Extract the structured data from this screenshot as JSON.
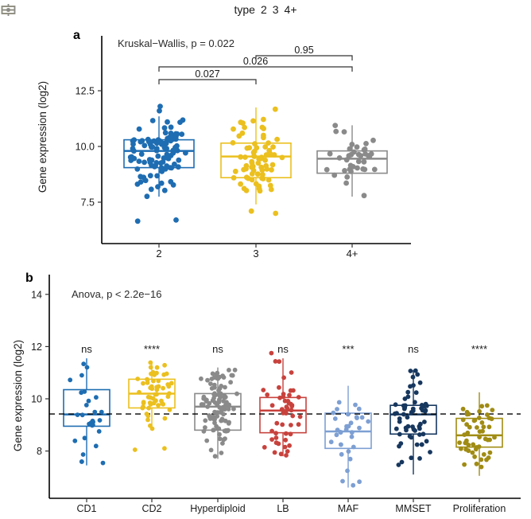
{
  "figure": {
    "background": "#ffffff",
    "text_color": "#1a1a1a"
  },
  "legend": {
    "title": "type",
    "items": [
      {
        "label": "2",
        "color": "#1e6db2"
      },
      {
        "label": "3",
        "color": "#ebc01f"
      },
      {
        "label": "4+",
        "color": "#8a8a8a"
      }
    ]
  },
  "chart_data": [
    {
      "type": "boxplot-jitter",
      "panel": "a",
      "stat_annotation": "Kruskal−Wallis, p = 0.022",
      "xlabel": "",
      "ylabel": "Gene expression (log2)",
      "categories": [
        "2",
        "3",
        "4+"
      ],
      "yticks": [
        "7.5",
        "10.0",
        "12.5"
      ],
      "ylim": [
        5.6,
        15.0
      ],
      "legend_position": "top",
      "grid": false,
      "boxes": [
        {
          "category": "2",
          "color": "#1e6db2",
          "n": 105,
          "whisker_low": 7.75,
          "q1": 9.05,
          "median": 9.8,
          "q3": 10.3,
          "whisker_high": 11.35,
          "outliers": [
            6.7,
            6.65,
            11.8,
            11.6
          ]
        },
        {
          "category": "3",
          "color": "#ebc01f",
          "n": 72,
          "whisker_low": 7.4,
          "q1": 8.6,
          "median": 9.55,
          "q3": 10.15,
          "whisker_high": 11.75,
          "outliers": [
            7.1,
            7.0
          ]
        },
        {
          "category": "4+",
          "color": "#8a8a8a",
          "n": 38,
          "whisker_low": 7.75,
          "q1": 8.8,
          "median": 9.45,
          "q3": 9.8,
          "whisker_high": 10.95,
          "outliers": []
        }
      ],
      "comparisons": [
        {
          "group1": "2",
          "group2": "3",
          "label": "0.027"
        },
        {
          "group1": "2",
          "group2": "4+",
          "label": "0.026"
        },
        {
          "group1": "3",
          "group2": "4+",
          "label": "0.95"
        }
      ]
    },
    {
      "type": "boxplot-jitter",
      "panel": "b",
      "stat_annotation": "Anova, p < 2.2e−16",
      "xlabel": "",
      "ylabel": "Gene expression (log2)",
      "categories": [
        "CD1",
        "CD2",
        "Hyperdiploid",
        "LB",
        "MAF",
        "MMSET",
        "Proliferation"
      ],
      "yticks": [
        "8",
        "10",
        "12",
        "14"
      ],
      "ylim": [
        6.0,
        14.8
      ],
      "reference_line": 9.42,
      "grid": false,
      "boxes": [
        {
          "category": "CD1",
          "sig": "ns",
          "color": "#1e6db2",
          "n": 28,
          "whisker_low": 7.45,
          "q1": 8.95,
          "median": 9.4,
          "q3": 10.35,
          "whisker_high": 11.55,
          "outliers": []
        },
        {
          "category": "CD2",
          "sig": "****",
          "color": "#ebc01f",
          "n": 55,
          "whisker_low": 8.8,
          "q1": 9.65,
          "median": 10.2,
          "q3": 10.75,
          "whisker_high": 11.4,
          "outliers": [
            8.1,
            8.05
          ]
        },
        {
          "category": "Hyperdiploid",
          "sig": "ns",
          "color": "#8a8a8a",
          "n": 105,
          "whisker_low": 7.7,
          "q1": 8.8,
          "median": 9.7,
          "q3": 10.2,
          "whisker_high": 11.2,
          "outliers": []
        },
        {
          "category": "LB",
          "sig": "ns",
          "color": "#c8423d",
          "n": 50,
          "whisker_low": 7.8,
          "q1": 8.7,
          "median": 9.55,
          "q3": 10.05,
          "whisker_high": 11.55,
          "outliers": [
            11.75
          ]
        },
        {
          "category": "MAF",
          "sig": "***",
          "color": "#7d9fd3",
          "n": 33,
          "whisker_low": 6.6,
          "q1": 8.1,
          "median": 8.75,
          "q3": 9.45,
          "whisker_high": 10.5,
          "outliers": []
        },
        {
          "category": "MMSET",
          "sig": "ns",
          "color": "#17375e",
          "n": 62,
          "whisker_low": 7.1,
          "q1": 8.65,
          "median": 9.4,
          "q3": 9.75,
          "whisker_high": 11.1,
          "outliers": []
        },
        {
          "category": "Proliferation",
          "sig": "****",
          "color": "#a08c14",
          "n": 52,
          "whisker_low": 7.05,
          "q1": 8.15,
          "median": 8.6,
          "q3": 9.25,
          "whisker_high": 10.25,
          "outliers": []
        }
      ]
    }
  ]
}
